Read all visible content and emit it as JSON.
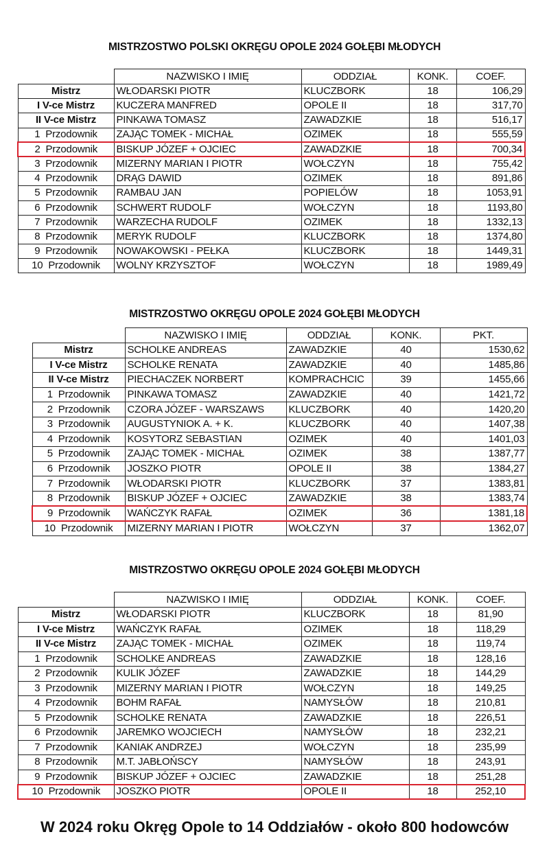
{
  "highlight_color": "#d9232e",
  "tables": [
    {
      "title": "MISTRZOSTWO POLSKI OKRĘGU OPOLE 2024 GOŁĘBI MŁODYCH",
      "headers": [
        "NAZWISKO I IMIĘ",
        "ODDZIAŁ",
        "KONK.",
        "COEF."
      ],
      "highlighted_row": 4,
      "rows": [
        {
          "rank": "Mistrz",
          "name": "WŁODARSKI PIOTR",
          "branch": "KLUCZBORK",
          "konk": "18",
          "value": "106,29"
        },
        {
          "rank": "I V-ce Mistrz",
          "name": "KUCZERA MANFRED",
          "branch": "OPOLE II",
          "konk": "18",
          "value": "317,70"
        },
        {
          "rank": "II V-ce Mistrz",
          "name": "PINKAWA TOMASZ",
          "branch": "ZAWADZKIE",
          "konk": "18",
          "value": "516,17"
        },
        {
          "rank": "1  Przodownik",
          "name": "ZAJĄC TOMEK - MICHAŁ",
          "branch": "OZIMEK",
          "konk": "18",
          "value": "555,59"
        },
        {
          "rank": "2  Przodownik",
          "name": "BISKUP JÓZEF + OJCIEC",
          "branch": "ZAWADZKIE",
          "konk": "18",
          "value": "700,34"
        },
        {
          "rank": "3  Przodownik",
          "name": "MIZERNY MARIAN I PIOTR",
          "branch": "WOŁCZYN",
          "konk": "18",
          "value": "755,42"
        },
        {
          "rank": "4  Przodownik",
          "name": "DRĄG DAWID",
          "branch": "OZIMEK",
          "konk": "18",
          "value": "891,86"
        },
        {
          "rank": "5  Przodownik",
          "name": "RAMBAU JAN",
          "branch": "POPIELÓW",
          "konk": "18",
          "value": "1053,91"
        },
        {
          "rank": "6  Przodownik",
          "name": "SCHWERT RUDOLF",
          "branch": "WOŁCZYN",
          "konk": "18",
          "value": "1193,80"
        },
        {
          "rank": "7  Przodownik",
          "name": "WARZECHA RUDOLF",
          "branch": "OZIMEK",
          "konk": "18",
          "value": "1332,13"
        },
        {
          "rank": "8  Przodownik",
          "name": "MERYK RUDOLF",
          "branch": "KLUCZBORK",
          "konk": "18",
          "value": "1374,80"
        },
        {
          "rank": "9  Przodownik",
          "name": "NOWAKOWSKI - PEŁKA",
          "branch": "KLUCZBORK",
          "konk": "18",
          "value": "1449,31"
        },
        {
          "rank": "10  Przodownik",
          "name": "WOLNY KRZYSZTOF",
          "branch": "WOŁCZYN",
          "konk": "18",
          "value": "1989,49"
        }
      ]
    },
    {
      "title": "MISTRZOSTWO OKRĘGU OPOLE 2024 GOŁĘBI MŁODYCH",
      "headers": [
        "NAZWISKO I IMIĘ",
        "ODDZIAŁ",
        "KONK.",
        "PKT."
      ],
      "highlighted_row": 11,
      "rows": [
        {
          "rank": "Mistrz",
          "name": "SCHOLKE ANDREAS",
          "branch": "ZAWADZKIE",
          "konk": "40",
          "value": "1530,62"
        },
        {
          "rank": "I V-ce Mistrz",
          "name": "SCHOLKE RENATA",
          "branch": "ZAWADZKIE",
          "konk": "40",
          "value": "1485,86"
        },
        {
          "rank": "II V-ce Mistrz",
          "name": "PIECHACZEK NORBERT",
          "branch": "KOMPRACHCIC",
          "konk": "39",
          "value": "1455,66"
        },
        {
          "rank": "1  Przodownik",
          "name": "PINKAWA TOMASZ",
          "branch": "ZAWADZKIE",
          "konk": "40",
          "value": "1421,72"
        },
        {
          "rank": "2  Przodownik",
          "name": "CZORA JÓZEF - WARSZAWS",
          "branch": "KLUCZBORK",
          "konk": "40",
          "value": "1420,20"
        },
        {
          "rank": "3  Przodownik",
          "name": "AUGUSTYNIOK A. + K.",
          "branch": "KLUCZBORK",
          "konk": "40",
          "value": "1407,38"
        },
        {
          "rank": "4  Przodownik",
          "name": "KOSYTORZ SEBASTIAN",
          "branch": "OZIMEK",
          "konk": "40",
          "value": "1401,03"
        },
        {
          "rank": "5  Przodownik",
          "name": "ZAJĄC TOMEK - MICHAŁ",
          "branch": "OZIMEK",
          "konk": "38",
          "value": "1387,77"
        },
        {
          "rank": "6  Przodownik",
          "name": "JOSZKO PIOTR",
          "branch": "OPOLE II",
          "konk": "38",
          "value": "1384,27"
        },
        {
          "rank": "7  Przodownik",
          "name": "WŁODARSKI PIOTR",
          "branch": "KLUCZBORK",
          "konk": "37",
          "value": "1383,81"
        },
        {
          "rank": "8  Przodownik",
          "name": "BISKUP JÓZEF + OJCIEC",
          "branch": "ZAWADZKIE",
          "konk": "38",
          "value": "1383,74"
        },
        {
          "rank": "9  Przodownik",
          "name": "WAŃCZYK RAFAŁ",
          "branch": "OZIMEK",
          "konk": "36",
          "value": "1381,18"
        },
        {
          "rank": "10  Przodownik",
          "name": "MIZERNY MARIAN I PIOTR",
          "branch": "WOŁCZYN",
          "konk": "37",
          "value": "1362,07"
        }
      ]
    },
    {
      "title": "MISTRZOSTWO OKRĘGU OPOLE 2024 GOŁĘBI MŁODYCH",
      "headers": [
        "NAZWISKO I IMIĘ",
        "ODDZIAŁ",
        "KONK.",
        "COEF."
      ],
      "highlighted_row": 12,
      "rows": [
        {
          "rank": "Mistrz",
          "name": "WŁODARSKI PIOTR",
          "branch": "KLUCZBORK",
          "konk": "18",
          "value": "81,90"
        },
        {
          "rank": "I V-ce Mistrz",
          "name": "WAŃCZYK RAFAŁ",
          "branch": "OZIMEK",
          "konk": "18",
          "value": "118,29"
        },
        {
          "rank": "II V-ce Mistrz",
          "name": "ZAJĄC TOMEK - MICHAŁ",
          "branch": "OZIMEK",
          "konk": "18",
          "value": "119,74"
        },
        {
          "rank": "1  Przodownik",
          "name": "SCHOLKE ANDREAS",
          "branch": "ZAWADZKIE",
          "konk": "18",
          "value": "128,16"
        },
        {
          "rank": "2  Przodownik",
          "name": "KULIK JÓZEF",
          "branch": "ZAWADZKIE",
          "konk": "18",
          "value": "144,29"
        },
        {
          "rank": "3  Przodownik",
          "name": "MIZERNY MARIAN I PIOTR",
          "branch": "WOŁCZYN",
          "konk": "18",
          "value": "149,25"
        },
        {
          "rank": "4  Przodownik",
          "name": "BOHM RAFAŁ",
          "branch": "NAMYSŁÓW",
          "konk": "18",
          "value": "210,81"
        },
        {
          "rank": "5  Przodownik",
          "name": "SCHOLKE RENATA",
          "branch": "ZAWADZKIE",
          "konk": "18",
          "value": "226,51"
        },
        {
          "rank": "6  Przodownik",
          "name": "JAREMKO WOJCIECH",
          "branch": "NAMYSŁÓW",
          "konk": "18",
          "value": "232,21"
        },
        {
          "rank": "7  Przodownik",
          "name": "KANIAK ANDRZEJ",
          "branch": "WOŁCZYN",
          "konk": "18",
          "value": "235,99"
        },
        {
          "rank": "8  Przodownik",
          "name": "M.T. JABŁOŃSCY",
          "branch": "NAMYSŁÓW",
          "konk": "18",
          "value": "243,91"
        },
        {
          "rank": "9  Przodownik",
          "name": "BISKUP JÓZEF + OJCIEC",
          "branch": "ZAWADZKIE",
          "konk": "18",
          "value": "251,28"
        },
        {
          "rank": "10  Przodownik",
          "name": "JOSZKO PIOTR",
          "branch": "OPOLE II",
          "konk": "18",
          "value": "252,10"
        }
      ]
    }
  ],
  "footer": "W 2024 roku Okręg Opole to 14 Oddziałów - około 800 hodowców"
}
